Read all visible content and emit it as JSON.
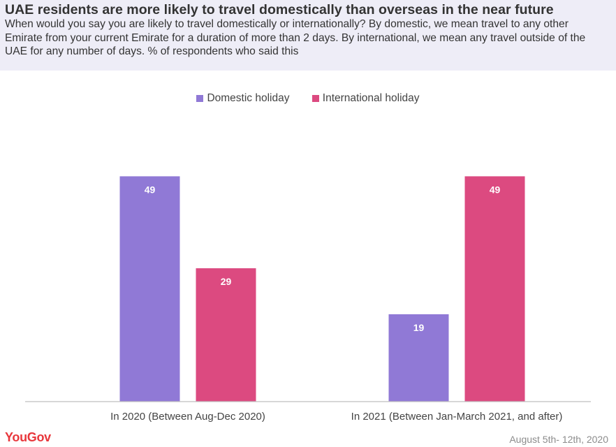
{
  "header": {
    "title": "UAE residents are more likely to travel domestically than overseas in the near future",
    "subtitle": "When would you say you are likely to travel domestically or internationally? By domestic, we mean travel to any other Emirate from your current Emirate for a duration of more than 2 days. By international, we mean any travel outside of the UAE for any number of days. % of respondents who said this"
  },
  "legend": {
    "domestic_label": "Domestic holiday",
    "international_label": "International holiday"
  },
  "colors": {
    "domestic": "#9079d6",
    "international": "#dc4a80",
    "header_bg": "#eeedf7"
  },
  "chart_data": {
    "type": "bar",
    "title": "UAE residents are more likely to travel domestically than overseas in the near future",
    "xlabel": "",
    "ylabel": "",
    "categories": [
      "In 2020 (Between Aug-Dec 2020)",
      "In 2021 (Between Jan-March 2021, and after)"
    ],
    "series": [
      {
        "name": "Domestic holiday",
        "values": [
          49,
          19
        ]
      },
      {
        "name": "International holiday",
        "values": [
          29,
          49
        ]
      }
    ],
    "ylim": [
      0,
      60
    ],
    "grid": false,
    "legend_position": "top-center",
    "data_labels": true
  },
  "footer": {
    "brand": "YouGov",
    "date_range": "August 5th- 12th, 2020"
  }
}
